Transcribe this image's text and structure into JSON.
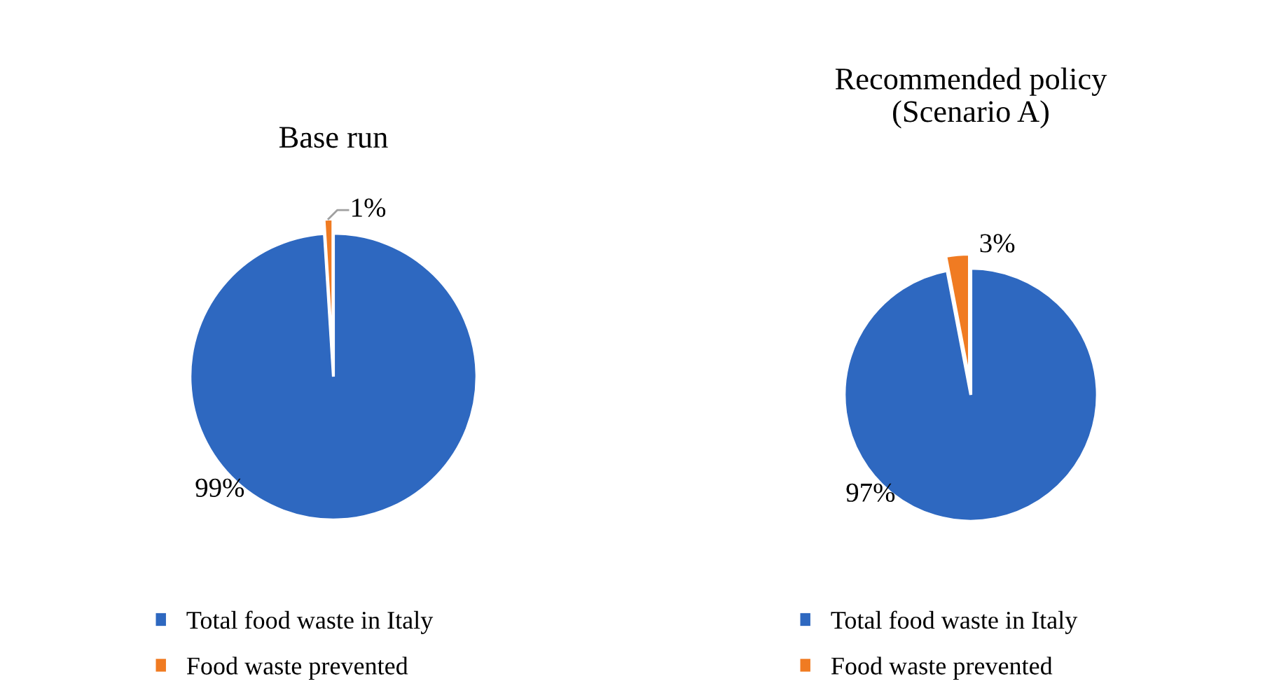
{
  "chart_data": [
    {
      "type": "pie",
      "title": "Base run",
      "categories": [
        "Total food waste in Italy",
        "Food waste prevented"
      ],
      "values": [
        99,
        1
      ],
      "colors": [
        "#2e68c0",
        "#f07b22"
      ],
      "value_labels": [
        "99%",
        "1%"
      ],
      "legend": "bottom"
    },
    {
      "type": "pie",
      "title": "Recommended policy\n(Scenario A)",
      "categories": [
        "Total food waste in Italy",
        "Food waste prevented"
      ],
      "values": [
        97,
        3
      ],
      "colors": [
        "#2e68c0",
        "#f07b22"
      ],
      "value_labels": [
        "97%",
        "3%"
      ],
      "legend": "bottom"
    }
  ]
}
